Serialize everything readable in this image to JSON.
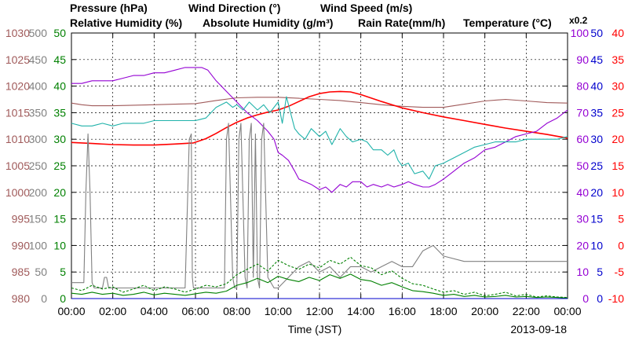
{
  "chart_data": {
    "type": "line",
    "xlabel": "Time (JST)",
    "date": "2013-09-18",
    "x_ticks": [
      "00:00",
      "02:00",
      "04:00",
      "06:00",
      "08:00",
      "10:00",
      "12:00",
      "14:00",
      "16:00",
      "18:00",
      "20:00",
      "22:00",
      "00:00"
    ],
    "xlim": [
      0,
      24
    ],
    "legend_top": [
      {
        "name": "Pressure (hPa)",
        "color": "#A05A5A"
      },
      {
        "name": "Wind Direction (°)",
        "color": "#808080"
      },
      {
        "name": "Wind Speed (m/s)",
        "color": "#008000"
      }
    ],
    "legend_bottom": [
      {
        "name": "Relative Humidity (%)",
        "color": "#9400D3"
      },
      {
        "name": "Absolute Humidity (g/m³)",
        "color": "#20B2AA"
      },
      {
        "name": "Rain Rate(mm/h)",
        "color": "#0000CD"
      },
      {
        "name": "Temperature (°C)",
        "color": "#FF0000"
      }
    ],
    "abs_humidity_scale_note": "x0.2",
    "axes": {
      "pressure": {
        "label_color": "#A05A5A",
        "ticks": [
          "980",
          "985",
          "990",
          "995",
          "1000",
          "1005",
          "1010",
          "1015",
          "1020",
          "1025",
          "1030"
        ],
        "ylim": [
          980,
          1030
        ]
      },
      "wind_direction": {
        "label_color": "#808080",
        "ticks": [
          "0",
          "50",
          "100",
          "150",
          "200",
          "250",
          "300",
          "350",
          "400",
          "450",
          "500"
        ],
        "ylim": [
          0,
          500
        ]
      },
      "wind_speed": {
        "label_color": "#008000",
        "ticks": [
          "0",
          "5",
          "10",
          "15",
          "20",
          "25",
          "30",
          "35",
          "40",
          "45",
          "50"
        ],
        "ylim": [
          0,
          50
        ]
      },
      "relative_humidity": {
        "label_color": "#9400D3",
        "ticks": [
          "0",
          "10",
          "20",
          "30",
          "40",
          "50",
          "60",
          "70",
          "80",
          "90",
          "100"
        ],
        "ylim": [
          0,
          100
        ]
      },
      "rain_rate": {
        "label_color": "#0000CD",
        "ticks": [
          "0",
          "5",
          "10",
          "15",
          "20",
          "25",
          "30",
          "35",
          "40",
          "45",
          "50"
        ],
        "ylim": [
          0,
          50
        ]
      },
      "temperature": {
        "label_color": "#FF0000",
        "ticks": [
          "-10",
          "-5",
          "0",
          "5",
          "10",
          "15",
          "20",
          "25",
          "30",
          "35",
          "40"
        ],
        "ylim": [
          -10,
          40
        ]
      }
    },
    "series": [
      {
        "key": "pressure",
        "axis": "pressure",
        "color": "#A05A5A",
        "dashed": false,
        "x": [
          0,
          0.5,
          1,
          2,
          3,
          4,
          5,
          6,
          7,
          8,
          9,
          10,
          11,
          12,
          13,
          14,
          15,
          16,
          17,
          18,
          19,
          20,
          21,
          22,
          23,
          24
        ],
        "y": [
          1016.8,
          1016.5,
          1016.3,
          1016.3,
          1016.4,
          1016.5,
          1016.6,
          1016.7,
          1017.3,
          1017.8,
          1017.9,
          1017.9,
          1017.7,
          1017.5,
          1017.3,
          1016.9,
          1016.5,
          1016.2,
          1016.0,
          1016.0,
          1016.6,
          1017.2,
          1017.5,
          1017.2,
          1016.9,
          1016.8
        ]
      },
      {
        "key": "temperature",
        "axis": "temperature",
        "color": "#FF0000",
        "dashed": false,
        "x": [
          0,
          1,
          2,
          3,
          4,
          5,
          5.9,
          6.5,
          7,
          7.5,
          8,
          8.5,
          9,
          9.5,
          10,
          10.5,
          11,
          11.5,
          12,
          12.5,
          13,
          13.5,
          14,
          15,
          16,
          17,
          18,
          19,
          20,
          21,
          22,
          23,
          24
        ],
        "y": [
          19.4,
          19.2,
          19.0,
          18.9,
          18.9,
          19.1,
          19.3,
          20.1,
          21.1,
          22.2,
          23.2,
          24.0,
          24.6,
          25.1,
          25.5,
          26.2,
          27.1,
          28.0,
          28.6,
          28.9,
          29.0,
          28.9,
          28.4,
          27.1,
          25.9,
          25.0,
          24.2,
          23.5,
          22.8,
          22.1,
          21.5,
          20.9,
          20.2
        ]
      },
      {
        "key": "relative_humidity",
        "axis": "relative_humidity",
        "color": "#9400D3",
        "dashed": false,
        "x": [
          0,
          0.5,
          1,
          1.5,
          2,
          2.5,
          3,
          3.5,
          4,
          4.5,
          5,
          5.5,
          6,
          6.3,
          6.6,
          7,
          7.5,
          8,
          8.5,
          9,
          9.5,
          9.8,
          10,
          10.2,
          10.5,
          10.8,
          11,
          11.3,
          11.6,
          12,
          12.3,
          12.6,
          13,
          13.3,
          13.6,
          14,
          14.3,
          14.6,
          15,
          15.3,
          15.6,
          16,
          16.3,
          16.6,
          17,
          17.3,
          17.6,
          18,
          18.5,
          19,
          19.5,
          20,
          20.5,
          21,
          21.5,
          22,
          22.5,
          23,
          23.5,
          24
        ],
        "y": [
          81,
          81,
          82,
          82,
          82,
          83,
          84,
          84,
          85,
          85,
          86,
          87,
          87,
          87,
          86,
          82,
          78,
          74,
          70,
          67,
          63,
          60,
          55,
          54,
          52,
          48,
          45,
          44,
          43,
          41,
          42,
          40,
          43,
          42,
          44,
          44,
          42,
          43,
          42,
          43,
          42,
          43,
          44,
          43,
          42,
          42,
          43,
          45,
          48,
          51,
          53,
          56,
          57,
          59,
          61,
          62,
          63,
          66,
          68,
          71
        ]
      },
      {
        "key": "absolute_humidity",
        "axis": "relative_humidity",
        "color": "#20B2AA",
        "dashed": false,
        "x": [
          0,
          0.5,
          1,
          1.5,
          2,
          2.5,
          3,
          3.5,
          4,
          4.5,
          5,
          5.5,
          6,
          6.5,
          7,
          7.5,
          7.8,
          8,
          8.3,
          8.6,
          9,
          9.3,
          9.6,
          10,
          10.2,
          10.4,
          10.6,
          10.8,
          11,
          11.3,
          11.6,
          12,
          12.3,
          12.6,
          13,
          13.3,
          13.6,
          14,
          14.3,
          14.6,
          15,
          15.3,
          15.6,
          15.8,
          16,
          16.3,
          16.6,
          17,
          17.3,
          17.6,
          18,
          18.5,
          19,
          19.5,
          20,
          20.5,
          21,
          21.5,
          22,
          22.5,
          23,
          23.5,
          24
        ],
        "y": [
          66,
          65,
          65,
          66,
          65,
          66,
          66,
          66,
          67,
          67,
          67,
          67,
          67,
          68,
          72,
          74,
          72,
          73,
          71,
          74,
          71,
          73,
          70,
          74,
          66,
          76,
          70,
          64,
          62,
          60,
          64,
          61,
          63,
          58,
          64,
          61,
          59,
          60,
          59,
          56,
          56,
          54,
          56,
          52,
          50,
          51,
          47,
          48,
          45,
          50,
          51,
          53,
          55,
          57,
          58,
          59,
          59,
          59,
          60,
          60,
          60,
          60,
          61
        ]
      },
      {
        "key": "wind_direction",
        "axis": "wind_direction",
        "color": "#808080",
        "dashed": false,
        "x": [
          0,
          0.6,
          0.7,
          0.8,
          0.9,
          1.0,
          1.1,
          1.5,
          1.6,
          1.7,
          1.8,
          2.0,
          3.0,
          3.5,
          4.5,
          5.5,
          5.7,
          5.8,
          5.85,
          5.9,
          6.0,
          6.5,
          7.0,
          7.4,
          7.5,
          7.6,
          7.8,
          7.9,
          8.0,
          8.1,
          8.2,
          8.4,
          8.5,
          8.6,
          8.7,
          8.8,
          8.9,
          9.0,
          9.1,
          9.2,
          9.3,
          9.5,
          9.8,
          10.0,
          10.5,
          11.0,
          11.5,
          12.0,
          12.5,
          13.0,
          13.5,
          14.0,
          14.5,
          15.0,
          15.5,
          16.0,
          16.5,
          17.0,
          17.5,
          18.0,
          19.0,
          20.0,
          21.0,
          22.0,
          23.0,
          24.0
        ],
        "y": [
          30,
          30,
          200,
          310,
          200,
          30,
          20,
          20,
          40,
          40,
          20,
          20,
          20,
          20,
          20,
          20,
          300,
          310,
          40,
          20,
          20,
          20,
          20,
          20,
          300,
          330,
          40,
          20,
          20,
          300,
          330,
          40,
          20,
          300,
          330,
          40,
          310,
          40,
          20,
          300,
          330,
          40,
          20,
          20,
          40,
          60,
          70,
          50,
          60,
          40,
          60,
          60,
          50,
          60,
          70,
          60,
          60,
          90,
          100,
          80,
          70,
          70,
          70,
          70,
          70,
          70
        ]
      },
      {
        "key": "wind_speed_max",
        "axis": "wind_speed",
        "color": "#008000",
        "dashed": true,
        "x": [
          0,
          0.5,
          1,
          1.5,
          2,
          2.5,
          3,
          3.5,
          4,
          4.5,
          5,
          5.5,
          6,
          6.5,
          7,
          7.5,
          8,
          8.5,
          9,
          9.5,
          10,
          10.5,
          11,
          11.5,
          12,
          12.5,
          13,
          13.5,
          14,
          14.5,
          15,
          15.5,
          16,
          16.5,
          17,
          17.5,
          18,
          18.5,
          19,
          19.5,
          20,
          20.5,
          21,
          21.5,
          22,
          22.5,
          23,
          23.5,
          24
        ],
        "y": [
          2,
          1.5,
          2.5,
          1.8,
          2.2,
          1.2,
          1.8,
          2.5,
          1.5,
          2.2,
          1.8,
          1.2,
          1.8,
          2.5,
          2.2,
          2.8,
          4.5,
          5.5,
          6.5,
          5.2,
          7.2,
          6.2,
          5.5,
          6.5,
          5.8,
          7.2,
          6.5,
          7.8,
          6.2,
          5.8,
          4.5,
          5.2,
          3.8,
          2.8,
          2.5,
          1.8,
          1.2,
          1.5,
          0.8,
          1.2,
          0.5,
          0.8,
          1.2,
          0.5,
          0.8,
          0.3,
          0.5,
          0.3,
          0.2
        ]
      },
      {
        "key": "wind_speed_mean",
        "axis": "wind_speed",
        "color": "#008000",
        "dashed": false,
        "x": [
          0,
          0.5,
          1,
          1.5,
          2,
          2.5,
          3,
          3.5,
          4,
          4.5,
          5,
          5.5,
          6,
          6.5,
          7,
          7.5,
          8,
          8.5,
          9,
          9.5,
          10,
          10.5,
          11,
          11.5,
          12,
          12.5,
          13,
          13.5,
          14,
          14.5,
          15,
          15.5,
          16,
          16.5,
          17,
          17.5,
          18,
          18.5,
          19,
          19.5,
          20,
          20.5,
          21,
          21.5,
          22,
          22.5,
          23,
          23.5,
          24
        ],
        "y": [
          1,
          0.8,
          1.2,
          0.8,
          1,
          0.6,
          0.8,
          1.2,
          0.7,
          1,
          0.8,
          0.6,
          0.9,
          1.2,
          1,
          1.4,
          2.5,
          3,
          3.8,
          3,
          4.2,
          3.6,
          3.2,
          4,
          3.4,
          4.5,
          3.8,
          4.6,
          3.6,
          3.3,
          2.5,
          3,
          2.2,
          1.5,
          1.3,
          1,
          0.6,
          0.8,
          0.4,
          0.6,
          0.3,
          0.4,
          0.6,
          0.3,
          0.4,
          0.2,
          0.3,
          0.2,
          0.1
        ]
      },
      {
        "key": "rain_rate",
        "axis": "rain_rate",
        "color": "#0000CD",
        "dashed": false,
        "x": [
          0,
          24
        ],
        "y": [
          0,
          0
        ]
      }
    ]
  }
}
